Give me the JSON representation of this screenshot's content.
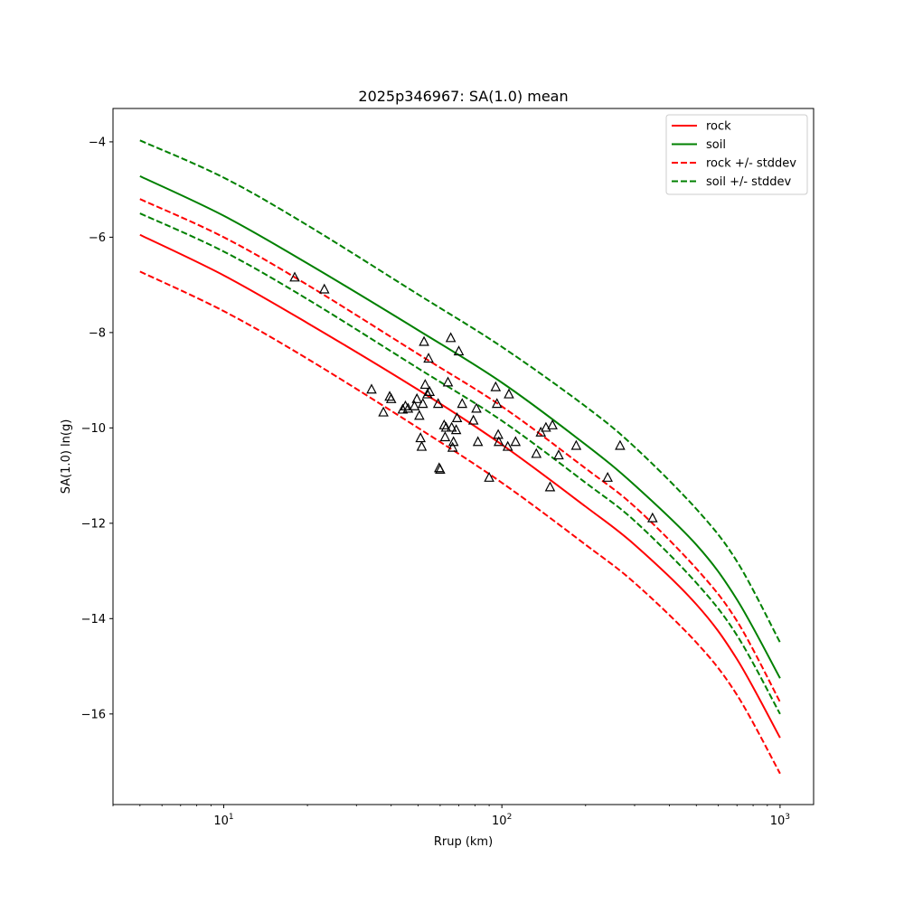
{
  "chart_data": {
    "type": "line",
    "title": "2025p346967: SA(1.0) mean",
    "xlabel": "Rrup (km)",
    "ylabel": "SA(1.0) ln(g)",
    "x_scale": "log",
    "xlim": [
      4.0,
      1320
    ],
    "ylim": [
      -17.9,
      -3.3
    ],
    "grid": false,
    "legend": "top-right",
    "x_ticks": [
      {
        "value": 10,
        "base": "10",
        "exp": "1"
      },
      {
        "value": 100,
        "base": "10",
        "exp": "2"
      },
      {
        "value": 1000,
        "base": "10",
        "exp": "3"
      }
    ],
    "y_ticks": [
      {
        "value": -4,
        "label": "−4"
      },
      {
        "value": -6,
        "label": "−6"
      },
      {
        "value": -8,
        "label": "−8"
      },
      {
        "value": -10,
        "label": "−10"
      },
      {
        "value": -12,
        "label": "−12"
      },
      {
        "value": -14,
        "label": "−14"
      },
      {
        "value": -16,
        "label": "−16"
      }
    ],
    "x": [
      5,
      10,
      20,
      50,
      100,
      200,
      300,
      500,
      700,
      1000
    ],
    "series": [
      {
        "name": "rock",
        "color": "#ff0000",
        "dash": false,
        "values": [
          -5.95,
          -6.8,
          -7.8,
          -9.2,
          -10.35,
          -11.65,
          -12.45,
          -13.7,
          -14.85,
          -16.5
        ]
      },
      {
        "name": "soil",
        "color": "#008000",
        "dash": false,
        "values": [
          -4.72,
          -5.55,
          -6.55,
          -7.95,
          -9.05,
          -10.35,
          -11.2,
          -12.45,
          -13.6,
          -15.25
        ]
      },
      {
        "name": "rock +/- stddev",
        "color": "#ff0000",
        "dash": true,
        "values": [
          -5.2,
          -6.0,
          -7.0,
          -8.45,
          -9.55,
          -10.85,
          -11.65,
          -12.95,
          -14.05,
          -15.75
        ]
      },
      {
        "name": "",
        "color": "#ff0000",
        "dash": true,
        "values": [
          -6.72,
          -7.55,
          -8.55,
          -10.0,
          -11.15,
          -12.45,
          -13.25,
          -14.5,
          -15.6,
          -17.25
        ]
      },
      {
        "name": "soil +/- stddev",
        "color": "#008000",
        "dash": true,
        "values": [
          -3.97,
          -4.75,
          -5.75,
          -7.2,
          -8.3,
          -9.55,
          -10.4,
          -11.7,
          -12.8,
          -14.5
        ]
      },
      {
        "name": "",
        "color": "#008000",
        "dash": true,
        "values": [
          -5.5,
          -6.3,
          -7.3,
          -8.75,
          -9.85,
          -11.15,
          -11.95,
          -13.25,
          -14.35,
          -16.0
        ]
      }
    ],
    "observations": [
      [
        18.0,
        -6.85
      ],
      [
        23.0,
        -7.1
      ],
      [
        34.0,
        -9.2
      ],
      [
        37.5,
        -9.68
      ],
      [
        39.5,
        -9.35
      ],
      [
        40.0,
        -9.4
      ],
      [
        44.0,
        -9.62
      ],
      [
        45.0,
        -9.55
      ],
      [
        46.0,
        -9.6
      ],
      [
        48.5,
        -9.55
      ],
      [
        49.5,
        -9.4
      ],
      [
        50.5,
        -9.75
      ],
      [
        51.0,
        -10.22
      ],
      [
        51.5,
        -10.4
      ],
      [
        52.0,
        -9.5
      ],
      [
        52.5,
        -8.2
      ],
      [
        53.0,
        -9.1
      ],
      [
        54.0,
        -9.3
      ],
      [
        54.5,
        -8.55
      ],
      [
        55.0,
        -9.25
      ],
      [
        59.0,
        -9.5
      ],
      [
        59.5,
        -10.85
      ],
      [
        60.0,
        -10.88
      ],
      [
        62.0,
        -9.95
      ],
      [
        62.5,
        -10.2
      ],
      [
        63.0,
        -10.0
      ],
      [
        64.0,
        -9.05
      ],
      [
        65.5,
        -8.12
      ],
      [
        66.0,
        -10.0
      ],
      [
        66.5,
        -10.42
      ],
      [
        67.0,
        -10.3
      ],
      [
        68.5,
        -10.05
      ],
      [
        69.0,
        -9.8
      ],
      [
        70.0,
        -8.4
      ],
      [
        72.0,
        -9.5
      ],
      [
        79.0,
        -9.85
      ],
      [
        81.0,
        -9.6
      ],
      [
        82.0,
        -10.3
      ],
      [
        90.0,
        -11.05
      ],
      [
        95.0,
        -9.15
      ],
      [
        96.0,
        -9.5
      ],
      [
        97.0,
        -10.15
      ],
      [
        97.5,
        -10.3
      ],
      [
        105.0,
        -10.4
      ],
      [
        106.0,
        -9.3
      ],
      [
        112.0,
        -10.3
      ],
      [
        133.0,
        -10.55
      ],
      [
        138.0,
        -10.1
      ],
      [
        144.0,
        -10.0
      ],
      [
        149.0,
        -11.25
      ],
      [
        152.0,
        -9.95
      ],
      [
        160.0,
        -10.58
      ],
      [
        185.0,
        -10.38
      ],
      [
        240.0,
        -11.05
      ],
      [
        266.0,
        -10.38
      ],
      [
        348.0,
        -11.9
      ]
    ]
  }
}
